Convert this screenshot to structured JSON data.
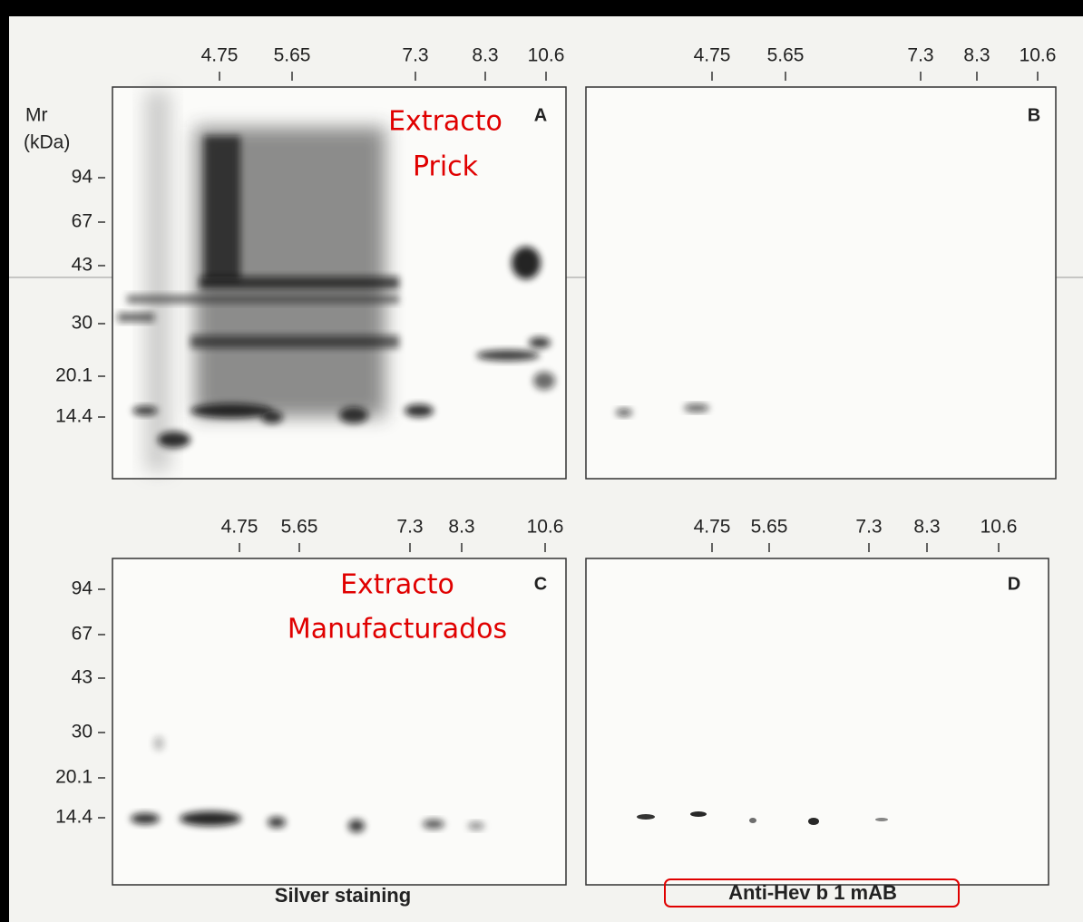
{
  "mr_header": [
    "Mr",
    "(kDa)"
  ],
  "panels": [
    {
      "letter": "A",
      "pi_ticks": [
        "4.75",
        "5.65",
        "7.3",
        "8.3",
        "10.6"
      ],
      "mr_ticks": [
        "94",
        "67",
        "43",
        "30",
        "20.1",
        "14.4"
      ],
      "annotation": [
        "Extracto",
        "Prick"
      ]
    },
    {
      "letter": "B",
      "pi_ticks": [
        "4.75",
        "5.65",
        "7.3",
        "8.3",
        "10.6"
      ]
    },
    {
      "letter": "C",
      "pi_ticks": [
        "4.75",
        "5.65",
        "7.3",
        "8.3",
        "10.6"
      ],
      "mr_ticks": [
        "94",
        "67",
        "43",
        "30",
        "20.1",
        "14.4"
      ],
      "annotation": [
        "Extracto",
        "Manufacturados"
      ]
    },
    {
      "letter": "D",
      "pi_ticks": [
        "4.75",
        "5.65",
        "7.3",
        "8.3",
        "10.6"
      ]
    }
  ],
  "captions": [
    "Silver staining",
    "Anti-Hev b 1 mAB"
  ]
}
